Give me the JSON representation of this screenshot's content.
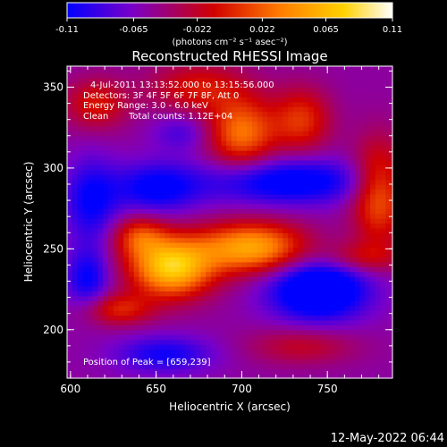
{
  "chart_data": {
    "type": "heatmap",
    "title": "Reconstructed RHESSI Image",
    "xlabel": "Heliocentric X (arcsec)",
    "ylabel": "Heliocentric Y (arcsec)",
    "xlim": [
      598,
      788
    ],
    "ylim": [
      170,
      363
    ],
    "x_ticks": [
      600,
      650,
      700,
      750
    ],
    "y_ticks": [
      200,
      250,
      300,
      350
    ],
    "colorbar": {
      "label": "(photons cm⁻² s⁻¹ asec⁻²)",
      "range": [
        -0.11,
        0.11
      ],
      "ticks": [
        "-0.11",
        "-0.065",
        "-0.022",
        "0.022",
        "0.065",
        "0.11"
      ],
      "colors": [
        "#0000ff",
        "#7a00c8",
        "#d00000",
        "#ff7a00",
        "#ffd200",
        "#ffffff"
      ]
    },
    "annotations": {
      "time": "4-Jul-2011 13:13:52.000 to 13:15:56.000",
      "detectors": "Detectors: 3F 4F 5F 6F 7F 8F, Att 0",
      "energy": "Energy Range: 3.0 - 6.0 keV",
      "method": "Clean",
      "counts": "Total counts: 1.12E+04",
      "peak": "Position of Peak = [659,239]"
    },
    "peak": [
      659,
      239
    ],
    "sources": [
      {
        "x": 659,
        "y": 239,
        "sx": 17,
        "sy": 13,
        "amp": 0.13
      },
      {
        "x": 706,
        "y": 251,
        "sx": 22,
        "sy": 11,
        "amp": 0.11
      },
      {
        "x": 640,
        "y": 258,
        "sx": 11,
        "sy": 9,
        "amp": 0.06
      },
      {
        "x": 628,
        "y": 213,
        "sx": 14,
        "sy": 7,
        "amp": 0.055
      },
      {
        "x": 700,
        "y": 322,
        "sx": 14,
        "sy": 15,
        "amp": 0.085
      },
      {
        "x": 735,
        "y": 330,
        "sx": 12,
        "sy": 14,
        "amp": 0.06
      },
      {
        "x": 675,
        "y": 350,
        "sx": 20,
        "sy": 11,
        "amp": 0.05
      },
      {
        "x": 780,
        "y": 285,
        "sx": 11,
        "sy": 22,
        "amp": 0.08
      },
      {
        "x": 615,
        "y": 340,
        "sx": 13,
        "sy": 11,
        "amp": 0.05
      },
      {
        "x": 770,
        "y": 245,
        "sx": 16,
        "sy": 7,
        "amp": 0.04
      },
      {
        "x": 735,
        "y": 190,
        "sx": 22,
        "sy": 8,
        "amp": 0.035
      },
      {
        "x": 745,
        "y": 225,
        "sx": 20,
        "sy": 13,
        "amp": -0.1
      },
      {
        "x": 728,
        "y": 292,
        "sx": 34,
        "sy": 10,
        "amp": -0.07
      },
      {
        "x": 650,
        "y": 288,
        "sx": 18,
        "sy": 11,
        "amp": -0.06
      },
      {
        "x": 610,
        "y": 232,
        "sx": 9,
        "sy": 13,
        "amp": -0.055
      },
      {
        "x": 612,
        "y": 280,
        "sx": 11,
        "sy": 18,
        "amp": -0.055
      },
      {
        "x": 655,
        "y": 185,
        "sx": 20,
        "sy": 8,
        "amp": -0.05
      },
      {
        "x": 665,
        "y": 322,
        "sx": 12,
        "sy": 8,
        "amp": -0.03
      }
    ],
    "background": -0.055
  },
  "footer": {
    "timestamp": "12-May-2022 06:44"
  }
}
